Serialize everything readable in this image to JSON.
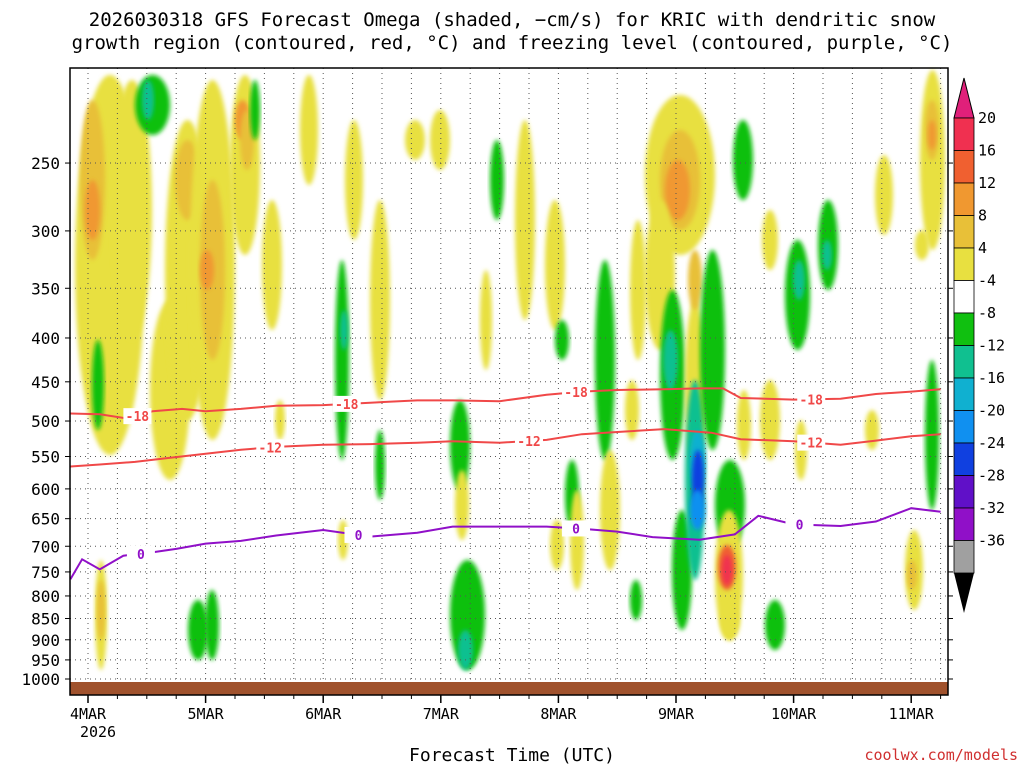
{
  "title": {
    "line1": "2026030318 GFS Forecast Omega (shaded, −cm/s) for KRIC with dendritic snow",
    "line2": "growth region (contoured, red, °C) and freezing level (contoured, purple, °C)"
  },
  "credit": "coolwx.com/models",
  "chart_data": {
    "type": "heatmap",
    "xlabel": "Forecast Time (UTC)",
    "ylabel": "",
    "x_ticks": [
      {
        "label": "4MAR",
        "sub": "2026",
        "day": 0
      },
      {
        "label": "5MAR",
        "sub": "",
        "day": 1
      },
      {
        "label": "6MAR",
        "sub": "",
        "day": 2
      },
      {
        "label": "7MAR",
        "sub": "",
        "day": 3
      },
      {
        "label": "8MAR",
        "sub": "",
        "day": 4
      },
      {
        "label": "9MAR",
        "sub": "",
        "day": 5
      },
      {
        "label": "10MAR",
        "sub": "",
        "day": 6
      },
      {
        "label": "11MAR",
        "sub": "",
        "day": 7
      }
    ],
    "xlim_days": [
      -0.15,
      7.25
    ],
    "ylim_hpa": [
      200,
      1000
    ],
    "y_scale": "log-pressure",
    "y_ticks": [
      250,
      300,
      350,
      400,
      450,
      500,
      550,
      600,
      650,
      700,
      750,
      800,
      850,
      900,
      950,
      1000
    ],
    "grid": true,
    "colorbar": {
      "levels": [
        20,
        16,
        12,
        8,
        4,
        -4,
        -8,
        -12,
        -16,
        -20,
        -24,
        -28,
        -32,
        -36
      ],
      "colors": [
        "#f03050",
        "#f06030",
        "#f09830",
        "#e8c038",
        "#e8e040",
        "#ffffff",
        "#10c010",
        "#10c090",
        "#10b0d0",
        "#1090f0",
        "#1040e0",
        "#6010c8",
        "#9010c8",
        "#a0a0a0"
      ],
      "top_arrow_color": "#e0207a",
      "bottom_arrow_color": "#000000"
    },
    "contours": [
      {
        "name": "-18",
        "color": "#f04848",
        "points": [
          [
            -0.15,
            490
          ],
          [
            0.1,
            491
          ],
          [
            0.35,
            497
          ],
          [
            0.55,
            487
          ],
          [
            0.8,
            484
          ],
          [
            1.0,
            487
          ],
          [
            1.3,
            484
          ],
          [
            1.6,
            480
          ],
          [
            2.0,
            479
          ],
          [
            2.4,
            476
          ],
          [
            2.8,
            473
          ],
          [
            3.1,
            473
          ],
          [
            3.5,
            474
          ],
          [
            3.9,
            466
          ],
          [
            4.2,
            462
          ],
          [
            4.5,
            460
          ],
          [
            4.9,
            459
          ],
          [
            5.2,
            458
          ],
          [
            5.4,
            458
          ],
          [
            5.55,
            470
          ],
          [
            6.0,
            472
          ],
          [
            6.4,
            471
          ],
          [
            6.7,
            465
          ],
          [
            7.0,
            462
          ],
          [
            7.25,
            459
          ]
        ],
        "labels": [
          [
            0.42,
            "-18"
          ],
          [
            2.2,
            "-18"
          ],
          [
            4.15,
            "-18"
          ],
          [
            6.15,
            "-18"
          ]
        ]
      },
      {
        "name": "-12",
        "color": "#f04848",
        "points": [
          [
            -0.15,
            565
          ],
          [
            0.1,
            562
          ],
          [
            0.4,
            558
          ],
          [
            0.7,
            552
          ],
          [
            1.0,
            546
          ],
          [
            1.3,
            540
          ],
          [
            1.6,
            536
          ],
          [
            2.0,
            533
          ],
          [
            2.4,
            532
          ],
          [
            2.8,
            530
          ],
          [
            3.1,
            528
          ],
          [
            3.5,
            530
          ],
          [
            3.9,
            526
          ],
          [
            4.2,
            518
          ],
          [
            4.5,
            515
          ],
          [
            4.9,
            511
          ],
          [
            5.3,
            516
          ],
          [
            5.55,
            525
          ],
          [
            6.0,
            528
          ],
          [
            6.4,
            533
          ],
          [
            6.7,
            527
          ],
          [
            7.0,
            521
          ],
          [
            7.25,
            518
          ]
        ],
        "labels": [
          [
            1.55,
            "-12"
          ],
          [
            3.75,
            "-12"
          ],
          [
            6.15,
            "-12"
          ]
        ]
      },
      {
        "name": "0",
        "color": "#9010c8",
        "points": [
          [
            -0.15,
            765
          ],
          [
            -0.05,
            725
          ],
          [
            0.1,
            745
          ],
          [
            0.3,
            718
          ],
          [
            0.5,
            713
          ],
          [
            0.75,
            705
          ],
          [
            1.0,
            695
          ],
          [
            1.3,
            690
          ],
          [
            1.6,
            680
          ],
          [
            2.0,
            670
          ],
          [
            2.4,
            682
          ],
          [
            2.8,
            675
          ],
          [
            3.1,
            664
          ],
          [
            3.5,
            664
          ],
          [
            3.9,
            664
          ],
          [
            4.2,
            668
          ],
          [
            4.5,
            673
          ],
          [
            4.8,
            683
          ],
          [
            5.2,
            688
          ],
          [
            5.5,
            678
          ],
          [
            5.7,
            645
          ],
          [
            6.0,
            660
          ],
          [
            6.4,
            663
          ],
          [
            6.7,
            655
          ],
          [
            7.0,
            632
          ],
          [
            7.25,
            638
          ]
        ],
        "labels": [
          [
            0.45,
            "0"
          ],
          [
            2.3,
            "0"
          ],
          [
            4.15,
            "0"
          ],
          [
            6.05,
            "0"
          ]
        ]
      }
    ],
    "ground_color": "#a0522d"
  }
}
